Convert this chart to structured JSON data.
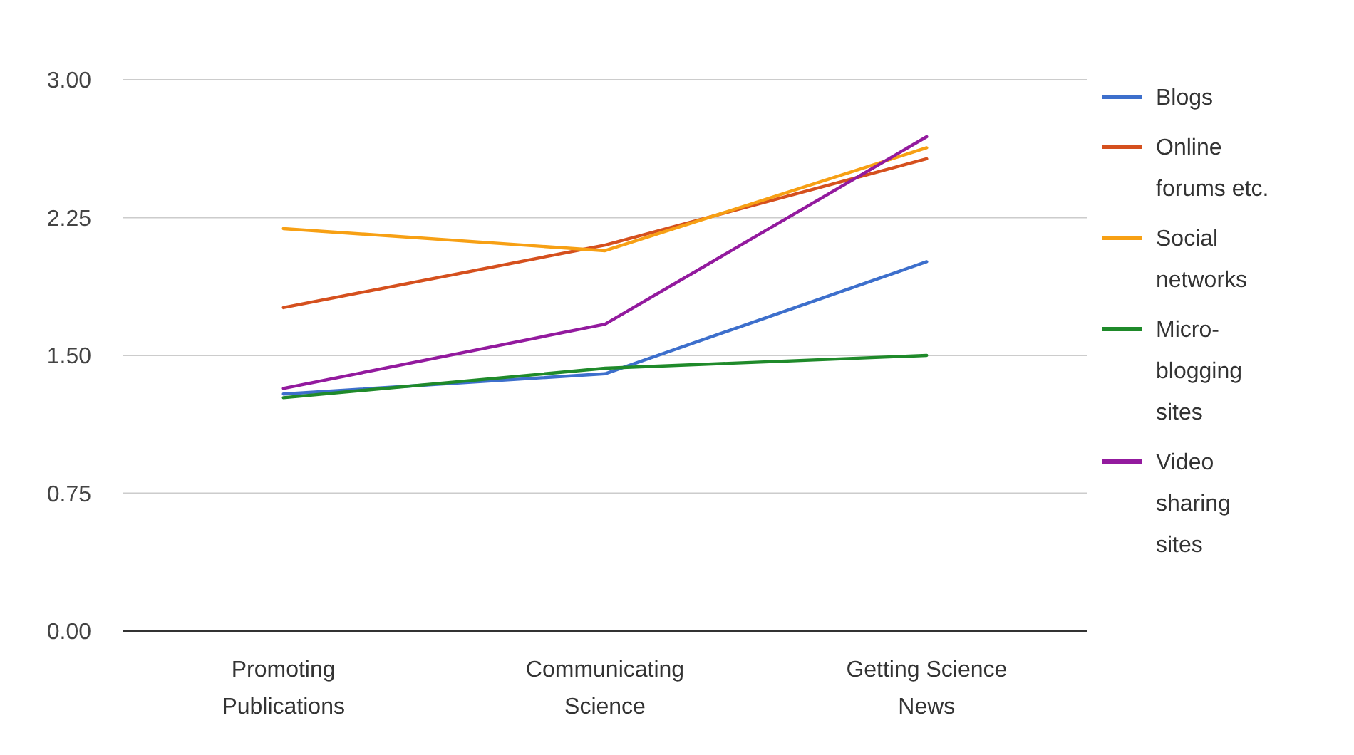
{
  "chart_data": {
    "type": "line",
    "categories": [
      "Promoting Publications",
      "Communicating Science",
      "Getting Science News"
    ],
    "series": [
      {
        "name": "Blogs",
        "color": "#3d6fcc",
        "values": [
          1.29,
          1.4,
          2.01
        ]
      },
      {
        "name": "Online forums etc.",
        "color": "#d5501e",
        "values": [
          1.76,
          2.1,
          2.57
        ]
      },
      {
        "name": "Social networks",
        "color": "#f7a014",
        "values": [
          2.19,
          2.07,
          2.63
        ]
      },
      {
        "name": "Micro-blogging sites",
        "color": "#1f8a2a",
        "values": [
          1.27,
          1.43,
          1.5
        ]
      },
      {
        "name": "Video sharing sites",
        "color": "#931a9e",
        "values": [
          1.32,
          1.67,
          2.69
        ]
      }
    ],
    "ylim": [
      0,
      3
    ],
    "yticks": [
      {
        "value": 0,
        "label": "0.00"
      },
      {
        "value": 0.75,
        "label": "0.75"
      },
      {
        "value": 1.5,
        "label": "1.50"
      },
      {
        "value": 2.25,
        "label": "2.25"
      },
      {
        "value": 3,
        "label": "3.00"
      }
    ],
    "grid": "y",
    "legend": "right",
    "marker": "none",
    "line_style": "solid"
  }
}
